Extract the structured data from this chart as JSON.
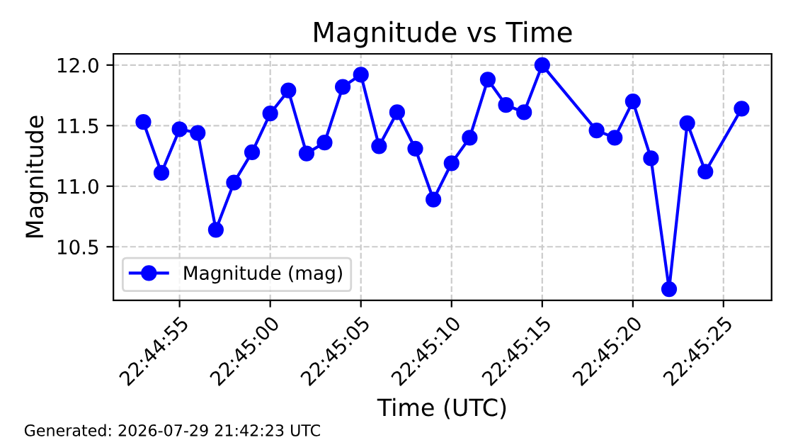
{
  "chart_data": {
    "type": "line",
    "title": "Magnitude vs Time",
    "xlabel": "Time (UTC)",
    "ylabel": "Magnitude",
    "annotations": [
      "Generated: 2026-07-29 21:42:23 UTC"
    ],
    "x": [
      22.748056,
      22.748333,
      22.748611,
      22.748889,
      22.749167,
      22.749444,
      22.749722,
      22.75,
      22.750278,
      22.750556,
      22.750833,
      22.751111,
      22.751389,
      22.751667,
      22.751944,
      22.752222,
      22.7525,
      22.752778,
      22.753056,
      22.753333,
      22.753611,
      22.753889,
      22.754167,
      22.755,
      22.755278,
      22.755556,
      22.755833,
      22.756111,
      22.756389,
      22.756667,
      22.757222
    ],
    "series": [
      {
        "name": "Magnitude (mag)",
        "color": "#0000ff",
        "values": [
          11.53,
          11.11,
          11.47,
          11.44,
          10.64,
          11.03,
          11.28,
          11.6,
          11.79,
          11.27,
          11.36,
          11.82,
          11.92,
          11.33,
          11.61,
          11.31,
          10.89,
          11.19,
          11.4,
          11.88,
          11.67,
          11.61,
          12.0,
          11.46,
          11.4,
          11.7,
          11.23,
          10.15,
          11.52,
          11.12,
          11.64
        ]
      }
    ],
    "xlim": [
      22.747597,
      22.757681
    ],
    "xticks": [
      {
        "value": 22.748611,
        "label": "22:44:55"
      },
      {
        "value": 22.75,
        "label": "22:45:00"
      },
      {
        "value": 22.751389,
        "label": "22:45:05"
      },
      {
        "value": 22.752778,
        "label": "22:45:10"
      },
      {
        "value": 22.754167,
        "label": "22:45:15"
      },
      {
        "value": 22.755556,
        "label": "22:45:20"
      },
      {
        "value": 22.756944,
        "label": "22:45:25"
      }
    ],
    "ylim": [
      10.0575,
      12.0925
    ],
    "yticks": [
      {
        "value": 10.5,
        "label": "10.5"
      },
      {
        "value": 11.0,
        "label": "11.0"
      },
      {
        "value": 11.5,
        "label": "11.5"
      },
      {
        "value": 12.0,
        "label": "12.0"
      }
    ],
    "grid": true,
    "legend": "lower left",
    "marker": "circle",
    "line_style": "solid"
  }
}
